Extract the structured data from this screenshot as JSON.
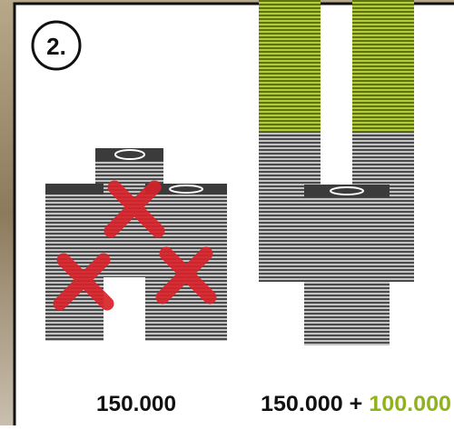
{
  "step": "2.",
  "left_label": "150.000",
  "right_label": {
    "base": "150.000",
    "plus": "+",
    "extra": "100.000"
  }
}
